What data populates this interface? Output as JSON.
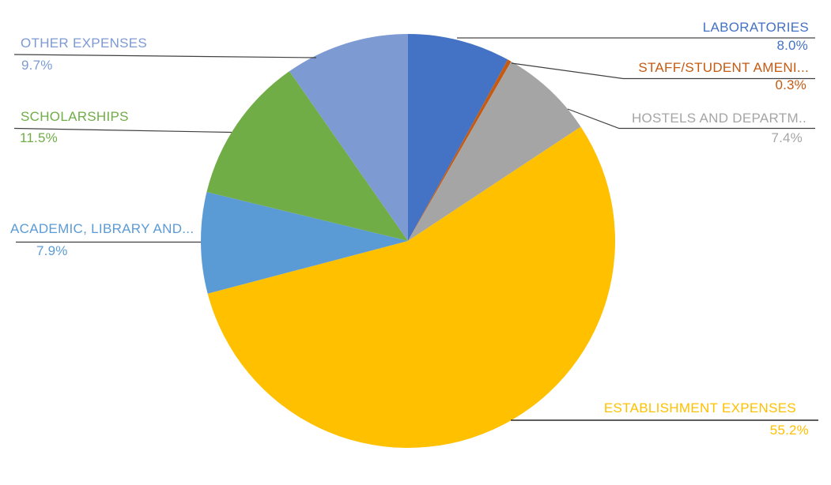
{
  "chart_data": {
    "type": "pie",
    "title": "",
    "legend_position": "none",
    "start_angle_deg": 0,
    "direction": "clockwise",
    "data_labels": "category name and percentage with leader lines",
    "slices": [
      {
        "label": "LABORATORIES",
        "value_pct": 8.0,
        "percent_label": "8.0%",
        "color": "#4472C4"
      },
      {
        "label": "STAFF/STUDENT AMENI...",
        "value_pct": 0.3,
        "percent_label": "0.3%",
        "color": "#C55A11"
      },
      {
        "label": "HOSTELS AND DEPARTM..",
        "value_pct": 7.4,
        "percent_label": "7.4%",
        "color": "#A5A5A5"
      },
      {
        "label": "ESTABLISHMENT EXPENSES",
        "value_pct": 55.2,
        "percent_label": "55.2%",
        "color": "#FFC000"
      },
      {
        "label": "ACADEMIC, LIBRARY AND...",
        "value_pct": 7.9,
        "percent_label": "7.9%",
        "color": "#5B9BD5"
      },
      {
        "label": "SCHOLARSHIPS",
        "value_pct": 11.5,
        "percent_label": "11.5%",
        "color": "#70AD47"
      },
      {
        "label": "OTHER EXPENSES",
        "value_pct": 9.7,
        "percent_label": "9.7%",
        "color": "#7D9AD3"
      }
    ]
  }
}
